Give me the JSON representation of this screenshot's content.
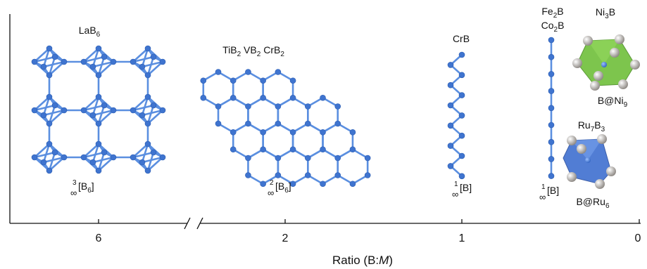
{
  "axis": {
    "title": {
      "prefix": "Ratio (B:",
      "italic": "M",
      "suffix": ")"
    },
    "ticks": [
      "6",
      "2",
      "1",
      "0"
    ]
  },
  "structures": {
    "lab6": {
      "label": [
        "LaB",
        "6"
      ],
      "notation": {
        "infinity": "∞",
        "dimension": "3",
        "formula": [
          "[B",
          "6",
          "]"
        ]
      }
    },
    "diborides": {
      "label": [
        "TiB",
        "2",
        " VB",
        "2",
        " CrB",
        "2"
      ],
      "notation": {
        "infinity": "∞",
        "dimension": "2",
        "formula": [
          "[B",
          "6",
          "]"
        ]
      }
    },
    "crb": {
      "label": [
        "CrB"
      ],
      "notation": {
        "infinity": "∞",
        "dimension": "1",
        "formula": [
          "[B]"
        ]
      }
    },
    "m2b": {
      "label": [
        "Fe",
        "2",
        "B"
      ],
      "label2": [
        "Co",
        "2",
        "B"
      ],
      "notation": {
        "infinity": "∞",
        "dimension": "1",
        "formula": [
          "[B]"
        ]
      }
    },
    "ni3b": {
      "label": [
        "Ni",
        "3",
        "B"
      ],
      "site": [
        "B@Ni",
        "9"
      ]
    },
    "ru7b3": {
      "label": [
        "Ru",
        "7",
        "B",
        "3"
      ],
      "site": [
        "B@Ru",
        "6"
      ]
    }
  }
}
